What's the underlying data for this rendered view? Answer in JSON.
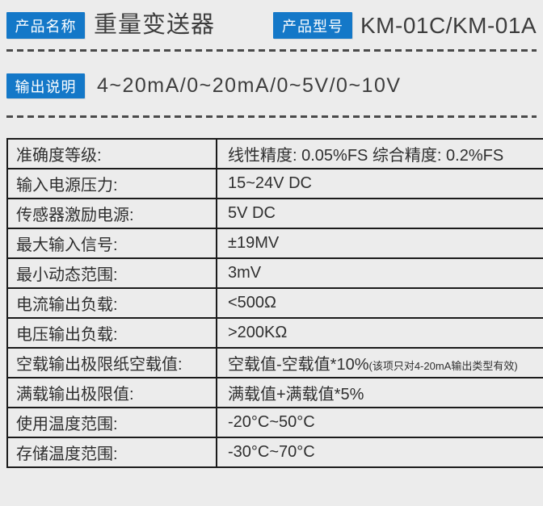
{
  "colors": {
    "accent_blue": "#1478c8",
    "background": "#ececec",
    "table_border": "#1b1b1b",
    "text": "#3a3a3a"
  },
  "header": {
    "name_badge": "产品名称",
    "product_name": "重量变送器",
    "model_badge": "产品型号",
    "product_model": "KM-01C/KM-01A"
  },
  "output_section": {
    "badge": "输出说明",
    "value": "4~20mA/0~20mA/0~5V/0~10V"
  },
  "spec_table": {
    "rows": [
      {
        "label": "准确度等级:",
        "value": "线性精度: 0.05%FS 综合精度: 0.2%FS"
      },
      {
        "label": "输入电源压力:",
        "value": "15~24V DC"
      },
      {
        "label": "传感器激励电源:",
        "value": "5V DC"
      },
      {
        "label": "最大输入信号:",
        "value": "±19MV"
      },
      {
        "label": "最小动态范围:",
        "value": "3mV"
      },
      {
        "label": "电流输出负载:",
        "value": "<500Ω"
      },
      {
        "label": "电压输出负载:",
        "value": ">200KΩ"
      },
      {
        "label": "空载输出极限纸空载值:",
        "value": "空载值-空载值*10%",
        "note": "(该项只对4-20mA输出类型有效)"
      },
      {
        "label": "满载输出极限值:",
        "value": "满载值+满载值*5%"
      },
      {
        "label": "使用温度范围:",
        "value": "-20°C~50°C"
      },
      {
        "label": "存储温度范围:",
        "value": "-30°C~70°C"
      }
    ]
  }
}
